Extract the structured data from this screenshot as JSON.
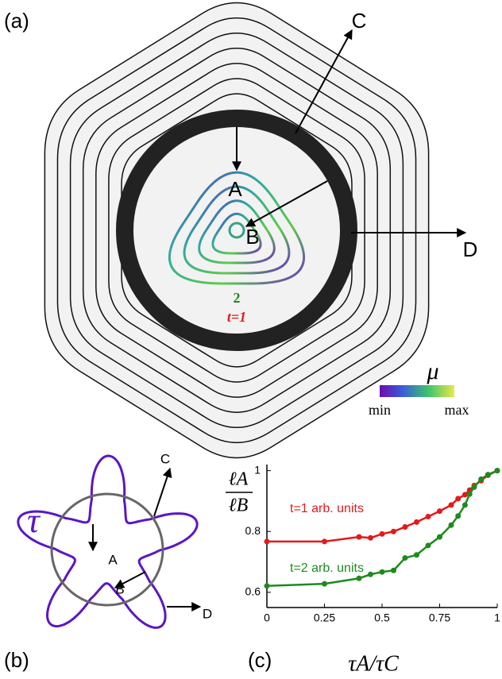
{
  "panel_labels": [
    "(a)",
    "(b)",
    "(c)"
  ],
  "diagram_a": {
    "points": [
      "A",
      "B",
      "C",
      "D"
    ],
    "contour_labels": [
      "2",
      "t=1"
    ],
    "colorbar": {
      "title": "μ",
      "min_label": "min",
      "max_label": "max"
    }
  },
  "diagram_b": {
    "symbol": "τ",
    "points": [
      "A",
      "B",
      "C",
      "D"
    ]
  },
  "chart_data": {
    "type": "line",
    "x_label": "τA/τC",
    "y_label_numerator": "ℓA",
    "y_label_denominator": "ℓB",
    "xlim": [
      0,
      1
    ],
    "xticks": [
      0,
      0.25,
      0.5,
      0.75,
      1
    ],
    "ylim": [
      0.55,
      1.02
    ],
    "yticks": [
      0.6,
      0.8,
      1
    ],
    "series": [
      {
        "name": "t=1 arb. units",
        "color": "#e31a1c",
        "x": [
          0,
          0.25,
          0.4,
          0.45,
          0.5,
          0.55,
          0.6,
          0.65,
          0.7,
          0.75,
          0.8,
          0.83,
          0.86,
          0.88,
          0.9,
          0.93,
          0.96,
          1
        ],
        "values": [
          0.767,
          0.767,
          0.782,
          0.779,
          0.792,
          0.8,
          0.815,
          0.831,
          0.849,
          0.867,
          0.887,
          0.908,
          0.921,
          0.936,
          0.951,
          0.967,
          0.985,
          1
        ]
      },
      {
        "name": "t=2 arb. units",
        "color": "#1e8a1e",
        "x": [
          0,
          0.25,
          0.4,
          0.45,
          0.5,
          0.55,
          0.6,
          0.65,
          0.7,
          0.75,
          0.8,
          0.83,
          0.86,
          0.88,
          0.9,
          0.93,
          0.96,
          1
        ],
        "values": [
          0.621,
          0.628,
          0.646,
          0.659,
          0.667,
          0.672,
          0.713,
          0.723,
          0.754,
          0.782,
          0.821,
          0.851,
          0.887,
          0.923,
          0.946,
          0.972,
          0.987,
          1
        ]
      }
    ]
  }
}
